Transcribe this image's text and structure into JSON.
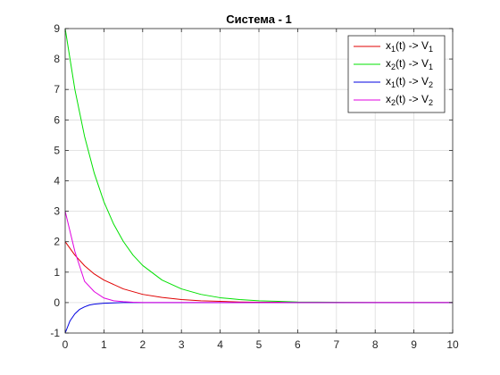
{
  "chart_data": {
    "type": "line",
    "title": "Система - 1",
    "xlabel": "",
    "ylabel": "",
    "xlim": [
      0,
      10
    ],
    "ylim": [
      -1,
      9
    ],
    "xticks": [
      0,
      1,
      2,
      3,
      4,
      5,
      6,
      7,
      8,
      9,
      10
    ],
    "yticks": [
      -1,
      0,
      1,
      2,
      3,
      4,
      5,
      6,
      7,
      8,
      9
    ],
    "grid": true,
    "legend_position": "top-right",
    "series": [
      {
        "name": "x1(t) -> V1",
        "legend": {
          "a": "x",
          "a_sub": "1",
          "b": "(t) -> V",
          "b_sub": "1"
        },
        "color": "#e00000",
        "x": [
          0,
          0.25,
          0.5,
          0.75,
          1,
          1.5,
          2,
          2.5,
          3,
          3.5,
          4,
          4.5,
          5,
          5.5,
          6,
          7,
          8,
          9,
          10
        ],
        "y": [
          2.0,
          1.56,
          1.21,
          0.94,
          0.74,
          0.45,
          0.27,
          0.17,
          0.1,
          0.06,
          0.04,
          0.02,
          0.01,
          0.01,
          0.0,
          0.0,
          0.0,
          0.0,
          0.0
        ]
      },
      {
        "name": "x2(t) -> V1",
        "legend": {
          "a": "x",
          "a_sub": "2",
          "b": "(t) -> V",
          "b_sub": "1"
        },
        "color": "#00e000",
        "x": [
          0,
          0.25,
          0.5,
          0.75,
          1,
          1.25,
          1.5,
          1.75,
          2,
          2.5,
          3,
          3.5,
          4,
          4.5,
          5,
          5.5,
          6,
          7,
          8,
          9,
          10
        ],
        "y": [
          9.0,
          7.0,
          5.46,
          4.25,
          3.31,
          2.58,
          2.01,
          1.56,
          1.22,
          0.74,
          0.45,
          0.27,
          0.16,
          0.1,
          0.06,
          0.04,
          0.02,
          0.01,
          0.0,
          0.0,
          0.0
        ]
      },
      {
        "name": "x1(t) -> V2",
        "legend": {
          "a": "x",
          "a_sub": "1",
          "b": "(t) -> V",
          "b_sub": "2"
        },
        "color": "#0000e0",
        "x": [
          0,
          0.125,
          0.25,
          0.375,
          0.5,
          0.625,
          0.75,
          1,
          1.25,
          1.5,
          2,
          3,
          4,
          5,
          6,
          7,
          8,
          9,
          10
        ],
        "y": [
          -1.0,
          -0.6,
          -0.37,
          -0.22,
          -0.14,
          -0.08,
          -0.05,
          -0.02,
          -0.01,
          0.0,
          0.0,
          0.0,
          0.0,
          0.0,
          0.0,
          0.0,
          0.0,
          0.0,
          0.0
        ]
      },
      {
        "name": "x2(t) -> V2",
        "legend": {
          "a": "x",
          "a_sub": "2",
          "b": "(t) -> V",
          "b_sub": "2"
        },
        "color": "#e000e0",
        "x": [
          0,
          0.25,
          0.5,
          0.75,
          1,
          1.25,
          1.5,
          1.75,
          2,
          2.5,
          3,
          4,
          5,
          6,
          7,
          8,
          9,
          10
        ],
        "y": [
          3.0,
          1.68,
          0.7,
          0.36,
          0.15,
          0.06,
          0.03,
          0.01,
          0.0,
          0.0,
          0.0,
          0.0,
          0.0,
          0.0,
          0.0,
          0.0,
          0.0,
          0.0
        ]
      }
    ]
  }
}
